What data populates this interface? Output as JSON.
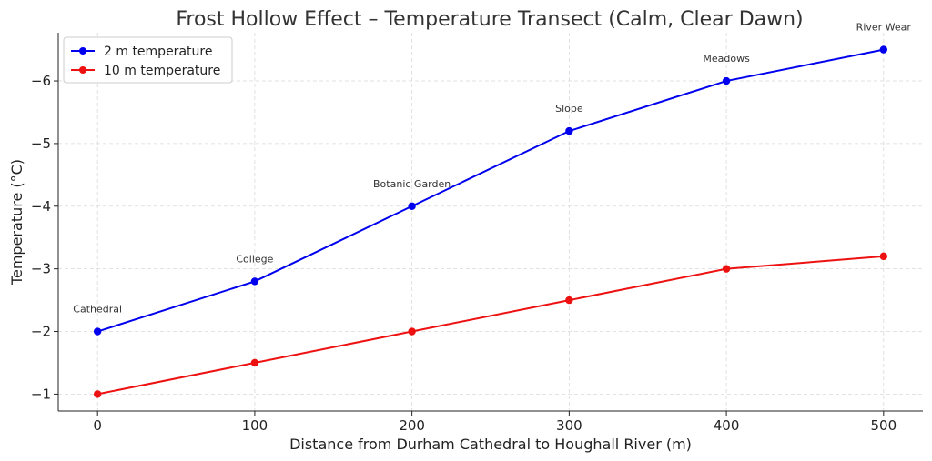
{
  "chart_data": {
    "type": "line",
    "title": "Frost Hollow Effect – Temperature Transect (Calm, Clear Dawn)",
    "xlabel": "Distance from Durham Cathedral to Houghall River (m)",
    "ylabel": "Temperature (°C)",
    "x": [
      0,
      100,
      200,
      300,
      400,
      500
    ],
    "xlim": [
      -25,
      525
    ],
    "ylim": [
      -0.73,
      -6.77
    ],
    "y_axis_inverted": true,
    "xticks": [
      0,
      100,
      200,
      300,
      400,
      500
    ],
    "xtick_labels": [
      "0",
      "100",
      "200",
      "300",
      "400",
      "500"
    ],
    "yticks": [
      -1,
      -2,
      -3,
      -4,
      -5,
      -6
    ],
    "ytick_labels": [
      "−1",
      "−2",
      "−3",
      "−4",
      "−5",
      "−6"
    ],
    "grid": true,
    "legend_position": "top-left",
    "series": [
      {
        "name": "2 m temperature",
        "color": "#0000ee",
        "values": [
          -2.0,
          -2.8,
          -4.0,
          -5.2,
          -6.0,
          -6.5
        ]
      },
      {
        "name": "10 m temperature",
        "color": "#ee1111",
        "values": [
          -1.0,
          -1.5,
          -2.0,
          -2.5,
          -3.0,
          -3.2
        ]
      }
    ],
    "annotations": [
      {
        "text": "Cathedral",
        "x": 0,
        "y": -2.0
      },
      {
        "text": "College",
        "x": 100,
        "y": -2.8
      },
      {
        "text": "Botanic Garden",
        "x": 200,
        "y": -4.0
      },
      {
        "text": "Slope",
        "x": 300,
        "y": -5.2
      },
      {
        "text": "Meadows",
        "x": 400,
        "y": -6.0
      },
      {
        "text": "River Wear",
        "x": 500,
        "y": -6.5
      }
    ]
  }
}
